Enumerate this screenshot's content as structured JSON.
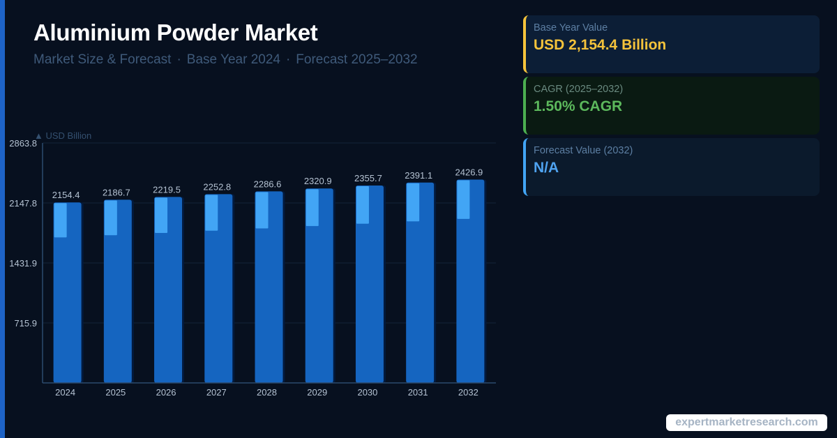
{
  "header": {
    "title": "Aluminium Powder Market",
    "subtitle_parts": [
      "Market Size & Forecast",
      "Base Year 2024",
      "Forecast 2025–2032"
    ],
    "separator": "·"
  },
  "cards": {
    "base": {
      "label": "Base Year Value",
      "value": "USD 2,154.4 Billion"
    },
    "cagr": {
      "label": "CAGR (2025–2032)",
      "value": "1.50% CAGR"
    },
    "forecast": {
      "label": "Forecast Value (2032)",
      "value": "N/A"
    }
  },
  "watermark": "expertmarketresearch.com",
  "colors": {
    "background": "#07101f",
    "bar": "#1565c0",
    "bar_highlight": "#42a5f5",
    "bar_shadow": "#031a3d",
    "accent_yellow": "#f5c33b",
    "accent_green": "#4caf50",
    "accent_blue": "#42a5f5"
  },
  "chart_data": {
    "type": "bar",
    "ylabel": "▲ USD Billion",
    "categories": [
      "2024",
      "2025",
      "2026",
      "2027",
      "2028",
      "2029",
      "2030",
      "2031",
      "2032"
    ],
    "values": [
      2154.4,
      2186.7,
      2219.5,
      2252.8,
      2286.6,
      2320.9,
      2355.7,
      2391.1,
      2426.9
    ],
    "value_labels": [
      "2154.4",
      "2186.7",
      "2219.5",
      "2252.8",
      "2286.6",
      "2320.9",
      "2355.7",
      "2391.1",
      "2426.9"
    ],
    "yticks": [
      715.9,
      1431.9,
      2147.8,
      2863.8
    ],
    "ytick_labels": [
      "715.9",
      "1431.9",
      "2147.8",
      "2863.8"
    ],
    "ylim": [
      0,
      2863.8
    ],
    "grid": true,
    "legend": "none"
  }
}
